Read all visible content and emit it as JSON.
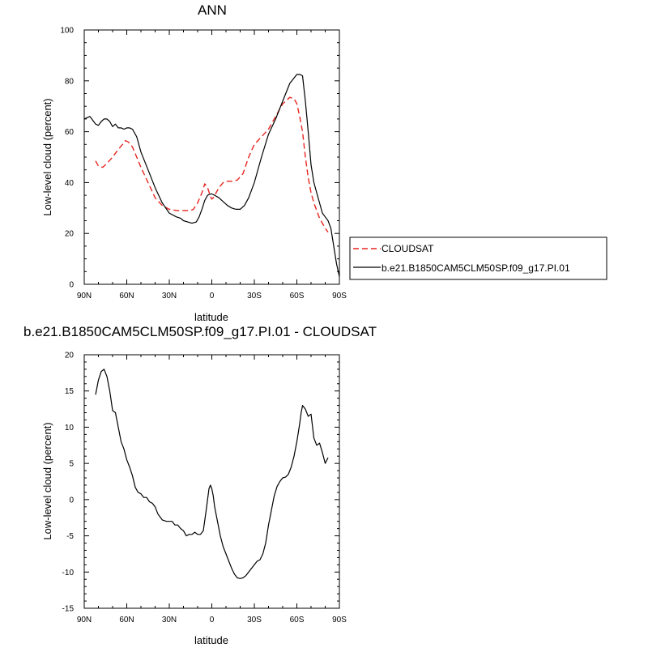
{
  "chart_data": [
    {
      "type": "line",
      "title": "ANN",
      "xlabel": "latitude",
      "ylabel": "Low-level cloud (percent)",
      "xlim": [
        90,
        -90
      ],
      "ylim": [
        0,
        100
      ],
      "x_ticks": [
        {
          "value": 90,
          "label": "90N"
        },
        {
          "value": 60,
          "label": "60N"
        },
        {
          "value": 30,
          "label": "30N"
        },
        {
          "value": 0,
          "label": "0"
        },
        {
          "value": -30,
          "label": "30S"
        },
        {
          "value": -60,
          "label": "60S"
        },
        {
          "value": -90,
          "label": "90S"
        }
      ],
      "y_ticks": [
        {
          "value": 0,
          "label": "0"
        },
        {
          "value": 20,
          "label": "20"
        },
        {
          "value": 40,
          "label": "40"
        },
        {
          "value": 60,
          "label": "60"
        },
        {
          "value": 80,
          "label": "80"
        },
        {
          "value": 100,
          "label": "100"
        }
      ],
      "legend": {
        "position": "right",
        "border": true
      },
      "series": [
        {
          "name": "CLOUDSAT",
          "color": "#e8251f",
          "dash": "dashed",
          "x": [
            82,
            80,
            77,
            74,
            70,
            66,
            63,
            61,
            59,
            56,
            53,
            50,
            45,
            40,
            35,
            30,
            25,
            20,
            15,
            13,
            10,
            7,
            5,
            3,
            1,
            0,
            -1,
            -3,
            -5,
            -8,
            -10,
            -14,
            -18,
            -22,
            -26,
            -30,
            -35,
            -40,
            -45,
            -50,
            -55,
            -58,
            -60,
            -62,
            -64,
            -66,
            -68,
            -70,
            -72,
            -74,
            -76,
            -78,
            -80,
            -82
          ],
          "y": [
            48.5,
            46.5,
            46,
            47.5,
            50,
            53,
            55,
            56.5,
            56,
            54,
            50,
            46,
            40,
            34,
            31,
            29.5,
            29,
            29,
            29,
            29.5,
            32,
            36,
            39.5,
            38,
            34.5,
            33.5,
            34,
            36,
            38,
            40,
            40.5,
            40.5,
            41,
            43.5,
            50,
            55,
            58,
            61,
            66,
            71,
            73.5,
            73,
            71,
            66,
            60,
            50,
            42,
            36,
            32,
            29,
            26,
            24,
            22,
            20.5
          ]
        },
        {
          "name": "b.e21.B1850CAM5CLM50SP.f09_g17.PI.01",
          "color": "#000000",
          "dash": "solid",
          "x": [
            90,
            88,
            86,
            84,
            82,
            80,
            78,
            76,
            74,
            72,
            70,
            68,
            66,
            64,
            62,
            60,
            58,
            56,
            53,
            50,
            45,
            40,
            35,
            30,
            25,
            22,
            20,
            17,
            14,
            11,
            9,
            7,
            5,
            3,
            1,
            0,
            -2,
            -5,
            -8,
            -11,
            -14,
            -17,
            -20,
            -23,
            -26,
            -30,
            -35,
            -40,
            -45,
            -50,
            -55,
            -60,
            -62,
            -64,
            -66,
            -68,
            -70,
            -72,
            -74,
            -76,
            -78,
            -80,
            -82,
            -84,
            -86,
            -88,
            -90
          ],
          "y": [
            65,
            65.5,
            66,
            64.5,
            63,
            62.5,
            64,
            65,
            65,
            64,
            62,
            63,
            61.5,
            61.5,
            61,
            61.5,
            61.5,
            61,
            58,
            52,
            45,
            38,
            32,
            28,
            26.5,
            26,
            25,
            24.5,
            24,
            24.5,
            26.5,
            29.5,
            33,
            35,
            35.5,
            35.5,
            35,
            34,
            32.5,
            31,
            30,
            29.5,
            29.5,
            31,
            34,
            40,
            50,
            59,
            65,
            72,
            79,
            82.5,
            82.5,
            82,
            72,
            60,
            47,
            40,
            36,
            32,
            28,
            26.5,
            25,
            22,
            15,
            8,
            3
          ]
        }
      ]
    },
    {
      "type": "line",
      "title": "b.e21.B1850CAM5CLM50SP.f09_g17.PI.01 - CLOUDSAT",
      "xlabel": "latitude",
      "ylabel": "Low-level cloud (percent)",
      "xlim": [
        90,
        -90
      ],
      "ylim": [
        -15,
        20
      ],
      "x_ticks": [
        {
          "value": 90,
          "label": "90N"
        },
        {
          "value": 60,
          "label": "60N"
        },
        {
          "value": 30,
          "label": "30N"
        },
        {
          "value": 0,
          "label": "0"
        },
        {
          "value": -30,
          "label": "30S"
        },
        {
          "value": -60,
          "label": "60S"
        },
        {
          "value": -90,
          "label": "90S"
        }
      ],
      "y_ticks": [
        {
          "value": -15,
          "label": "-15"
        },
        {
          "value": -10,
          "label": "-10"
        },
        {
          "value": -5,
          "label": "-5"
        },
        {
          "value": 0,
          "label": "0"
        },
        {
          "value": 5,
          "label": "5"
        },
        {
          "value": 10,
          "label": "10"
        },
        {
          "value": 15,
          "label": "15"
        },
        {
          "value": 20,
          "label": "20"
        }
      ],
      "series": [
        {
          "color": "#000000",
          "dash": "solid",
          "x": [
            82,
            80,
            78,
            76,
            74,
            72,
            70,
            68,
            66,
            64,
            62,
            60,
            58,
            56,
            54,
            52,
            50,
            48,
            46,
            44,
            42,
            40,
            38,
            35,
            32,
            30,
            28,
            26,
            24,
            22,
            20,
            18,
            16,
            14,
            12,
            10,
            8,
            6,
            4,
            2,
            1,
            0,
            -1,
            -2,
            -4,
            -6,
            -8,
            -10,
            -12,
            -14,
            -16,
            -18,
            -20,
            -22,
            -24,
            -26,
            -28,
            -30,
            -32,
            -34,
            -36,
            -38,
            -40,
            -42,
            -44,
            -46,
            -48,
            -50,
            -52,
            -54,
            -56,
            -58,
            -60,
            -62,
            -63,
            -64,
            -66,
            -68,
            -70,
            -72,
            -74,
            -76,
            -78,
            -80,
            -82
          ],
          "y": [
            14.5,
            16.5,
            17.7,
            18,
            17,
            15,
            12.3,
            12,
            10,
            8,
            7,
            5.5,
            4.5,
            3.3,
            1.7,
            1,
            0.8,
            0.3,
            0.3,
            -0.3,
            -0.5,
            -1,
            -2,
            -2.8,
            -3,
            -3,
            -3,
            -3.5,
            -3.5,
            -4,
            -4.3,
            -5,
            -4.8,
            -4.8,
            -4.5,
            -4.8,
            -4.8,
            -4.3,
            -1.5,
            1.5,
            2,
            1.5,
            0.5,
            -1,
            -3,
            -5,
            -6.5,
            -7.5,
            -8.5,
            -9.5,
            -10.3,
            -10.8,
            -10.9,
            -10.8,
            -10.5,
            -10,
            -9.5,
            -9,
            -8.5,
            -8.3,
            -7.5,
            -6,
            -3.5,
            -1.5,
            0.5,
            1.8,
            2.5,
            3,
            3.1,
            3.5,
            4.5,
            6,
            8,
            10.5,
            12,
            13,
            12.5,
            11.5,
            11.8,
            8.5,
            7.5,
            7.8,
            6.5,
            5,
            5.8
          ]
        }
      ]
    }
  ]
}
